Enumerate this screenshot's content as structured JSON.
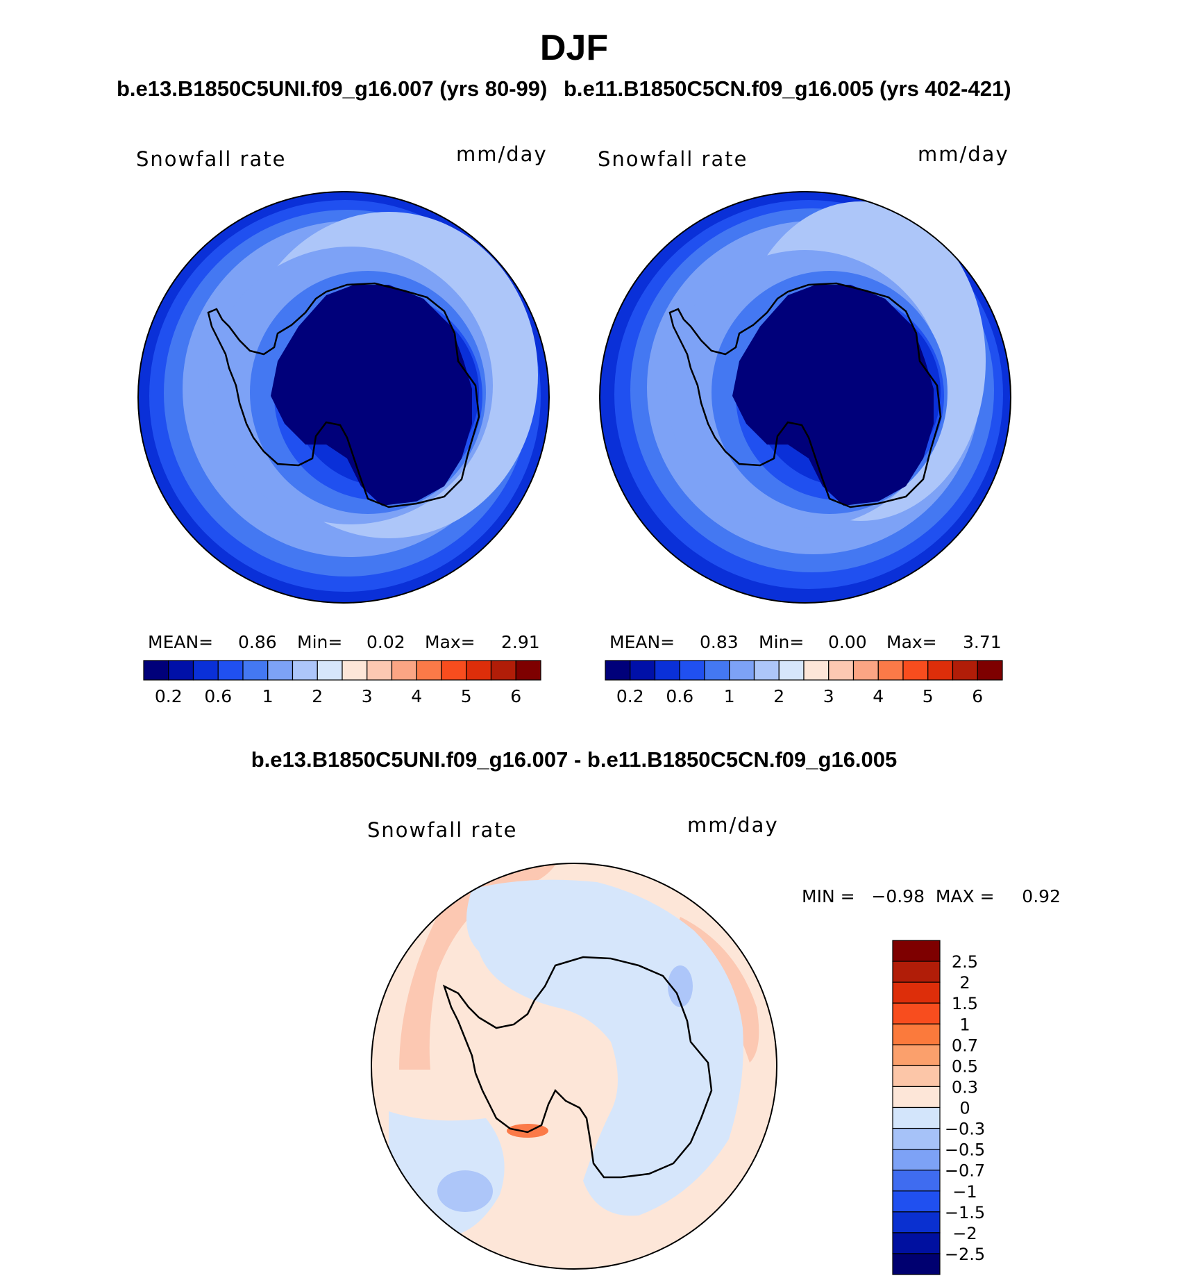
{
  "figure": {
    "season": "DJF",
    "case1_header": "b.e13.B1850C5UNI.f09_g16.007 (yrs 80-99)",
    "case2_header": "b.e11.B1850C5CN.f09_g16.005 (yrs 402-421)",
    "diff_title": "b.e13.B1850C5UNI.f09_g16.007 - b.e11.B1850C5CN.f09_g16.005"
  },
  "panels": [
    {
      "variable": "Snowfall rate",
      "units": "mm/day",
      "mean_label": "MEAN=",
      "mean": "0.86",
      "min_label": "Min=",
      "min": "0.02",
      "max_label": "Max=",
      "max": "2.91"
    },
    {
      "variable": "Snowfall rate",
      "units": "mm/day",
      "mean_label": "MEAN=",
      "mean": "0.83",
      "min_label": "Min=",
      "min": "0.00",
      "max_label": "Max=",
      "max": "3.71"
    }
  ],
  "diff_panel": {
    "variable": "Snowfall rate",
    "units": "mm/day",
    "minmax": "MIN =   −0.98  MAX =     0.92"
  },
  "abs_colorbar": {
    "colors": [
      "#00007a",
      "#0010a8",
      "#0a30d8",
      "#2050f0",
      "#4478f2",
      "#7da2f6",
      "#adc6f9",
      "#d6e6fb",
      "#fde6d8",
      "#fcc8b2",
      "#fba584",
      "#fb7a48",
      "#f84d1e",
      "#dd2e0a",
      "#b11d08",
      "#7e0000"
    ],
    "tick_labels": [
      "0.2",
      "0.6",
      "1",
      "2",
      "3",
      "4",
      "5",
      "6"
    ]
  },
  "diff_colorbar": {
    "colors": [
      "#000070",
      "#0010a0",
      "#0a30d0",
      "#2050f0",
      "#3f6cf0",
      "#7da2f6",
      "#a6c2f8",
      "#d3e5fb",
      "#fde6d8",
      "#fcc6a8",
      "#fba06c",
      "#fb7a3c",
      "#f84d1e",
      "#dd2e0a",
      "#b11d08",
      "#7e0000"
    ],
    "tick_labels": [
      "2.5",
      "2",
      "1.5",
      "1",
      "0.7",
      "0.5",
      "0.3",
      "0",
      "−0.3",
      "−0.5",
      "−0.7",
      "−1",
      "−1.5",
      "−2",
      "−2.5"
    ]
  }
}
